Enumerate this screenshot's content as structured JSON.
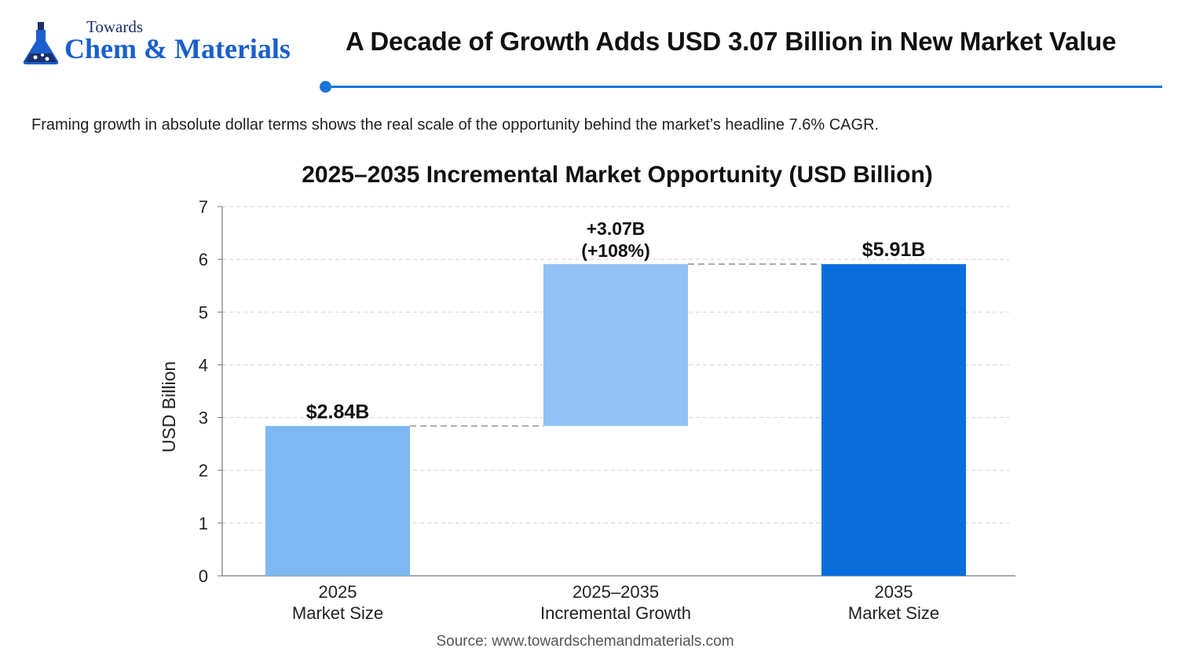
{
  "brand": {
    "line1": "Towards",
    "line2": "Chem & Materials",
    "icon": "flask-icon"
  },
  "headline": "A Decade of Growth Adds USD 3.07 Billion in New Market Value",
  "subtitle": "Framing growth in absolute dollar terms shows the real scale of the opportunity behind the market’s headline 7.6% CAGR.",
  "source": "Source: www.towardschemandmaterials.com",
  "colors": {
    "accent": "#1b75d8",
    "bar_light": "#7db8f2",
    "bar_mid": "#90c2f5",
    "bar_dark": "#0a6fdc"
  },
  "chart_data": {
    "type": "bar",
    "subtype": "waterfall",
    "title": "2025–2035 Incremental Market Opportunity (USD Billion)",
    "ylabel": "USD Billion",
    "xlabel": "",
    "ylim": [
      0,
      7
    ],
    "yticks": [
      "0",
      "1",
      "2",
      "3",
      "4",
      "5",
      "6",
      "7"
    ],
    "grid": true,
    "bars": [
      {
        "category_line1": "2025",
        "category_line2": "Market Size",
        "start": 0,
        "end": 2.84,
        "label_line1": "$2.84B",
        "label_line2": "",
        "color": "#7db8f2"
      },
      {
        "category_line1": "2025–2035",
        "category_line2": "Incremental Growth",
        "start": 2.84,
        "end": 5.91,
        "label_line1": "+3.07B",
        "label_line2": "(+108%)",
        "color": "#90c2f5"
      },
      {
        "category_line1": "2035",
        "category_line2": "Market Size",
        "start": 0,
        "end": 5.91,
        "label_line1": "$5.91B",
        "label_line2": "",
        "color": "#0a6fdc"
      }
    ]
  }
}
